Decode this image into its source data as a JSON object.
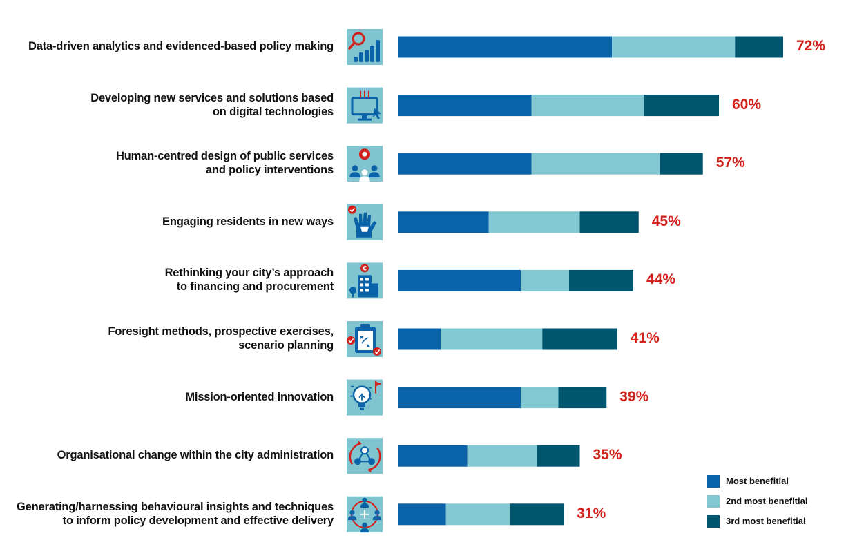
{
  "chart_data": {
    "type": "bar",
    "orientation": "horizontal",
    "stacked": true,
    "title": "",
    "categories": [
      "Data-driven analytics and evidenced-based policy making",
      "Developing new services and solutions based on digital technologies",
      "Human-centred design of public services and policy interventions",
      "Engaging residents in new ways",
      "Rethinking your city’s approach to financing and procurement",
      "Foresight methods, prospective exercises, scenario planning",
      "Mission-oriented innovation",
      "Organisational change within the city administration",
      "Generating/harnessing behavioural insights and techniques to inform policy development and effective delivery"
    ],
    "category_lines": [
      [
        "Data-driven analytics and evidenced-based policy making"
      ],
      [
        "Developing new services and solutions based",
        "on digital technologies"
      ],
      [
        "Human-centred design of public services",
        "and policy interventions"
      ],
      [
        "Engaging residents in new ways"
      ],
      [
        "Rethinking your city’s approach",
        "to financing and procurement"
      ],
      [
        "Foresight methods, prospective exercises,",
        "scenario planning"
      ],
      [
        "Mission-oriented innovation"
      ],
      [
        "Organisational change within the city administration"
      ],
      [
        "Generating/harnessing behavioural insights and techniques",
        "to inform policy development and effective delivery"
      ]
    ],
    "icons": [
      "analytics-magnifier-icon",
      "digital-monitor-icon",
      "human-centred-design-icon",
      "raised-hands-icon",
      "financing-building-icon",
      "foresight-clipboard-icon",
      "lightbulb-flag-icon",
      "org-change-cycle-icon",
      "people-network-icon"
    ],
    "series": [
      {
        "name": "Most benefitial",
        "color": "#0a63a8",
        "values": [
          40,
          25,
          25,
          17,
          23,
          8,
          23,
          13,
          9
        ]
      },
      {
        "name": "2nd most benefitial",
        "color": "#82c8d2",
        "values": [
          23,
          21,
          24,
          17,
          9,
          19,
          7,
          13,
          12
        ]
      },
      {
        "name": "3rd most benefitial",
        "color": "#00566e",
        "values": [
          9,
          14,
          8,
          11,
          12,
          14,
          9,
          8,
          10
        ]
      }
    ],
    "totals": [
      "72%",
      "60%",
      "57%",
      "45%",
      "44%",
      "41%",
      "39%",
      "35%",
      "31%"
    ],
    "xlim": [
      0,
      72
    ],
    "legend_position": "bottom-right",
    "accent_color": "#d0211c",
    "icon_bg_color": "#7fc4cf"
  }
}
